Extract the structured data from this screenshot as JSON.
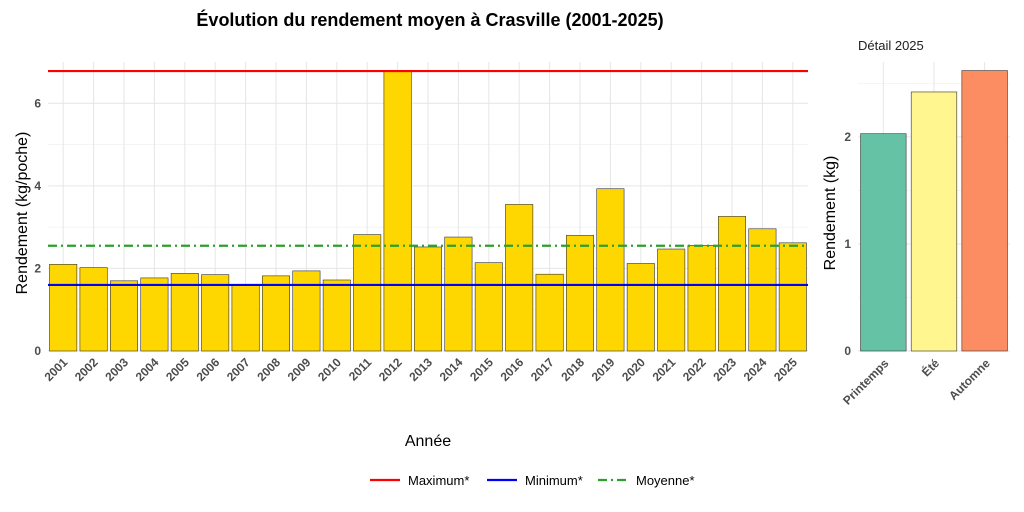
{
  "chart_data": [
    {
      "type": "bar",
      "title": "Évolution du rendement moyen à Crasville (2001-2025)",
      "xlabel": "Année",
      "ylabel": "Rendement (kg/poche)",
      "ylim": [
        0,
        7
      ],
      "yticks": [
        0,
        2,
        4,
        6
      ],
      "grid": true,
      "bar_color": "#FFD700",
      "categories": [
        "2001",
        "2002",
        "2003",
        "2004",
        "2005",
        "2006",
        "2007",
        "2008",
        "2009",
        "2010",
        "2011",
        "2012",
        "2013",
        "2014",
        "2015",
        "2016",
        "2017",
        "2018",
        "2019",
        "2020",
        "2021",
        "2022",
        "2023",
        "2024",
        "2025"
      ],
      "values": [
        2.1,
        2.02,
        1.7,
        1.77,
        1.88,
        1.85,
        1.6,
        1.82,
        1.94,
        1.72,
        2.82,
        6.78,
        2.52,
        2.76,
        2.14,
        3.55,
        1.86,
        2.8,
        3.93,
        2.12,
        2.47,
        2.56,
        3.26,
        2.96,
        2.62
      ],
      "reference_lines": [
        {
          "name": "Maximum*",
          "value": 6.78,
          "color": "#FF0000",
          "style": "solid"
        },
        {
          "name": "Minimum*",
          "value": 1.6,
          "color": "#0000FF",
          "style": "solid"
        },
        {
          "name": "Moyenne*",
          "value": 2.55,
          "color": "#2CA02C",
          "style": "dashdot"
        }
      ],
      "legend": {
        "position": "bottom",
        "entries": [
          "Maximum*",
          "Minimum*",
          "Moyenne*"
        ]
      }
    },
    {
      "type": "bar",
      "title": "Détail 2025",
      "xlabel": "",
      "ylabel": "Rendement (kg)",
      "ylim": [
        0,
        2.7
      ],
      "yticks": [
        0,
        1,
        2
      ],
      "grid": true,
      "categories": [
        "Printemps",
        "Été",
        "Automne"
      ],
      "values": [
        2.03,
        2.42,
        2.62
      ],
      "colors": [
        "#66C2A5",
        "#FFF68F",
        "#FC8D62"
      ]
    }
  ]
}
